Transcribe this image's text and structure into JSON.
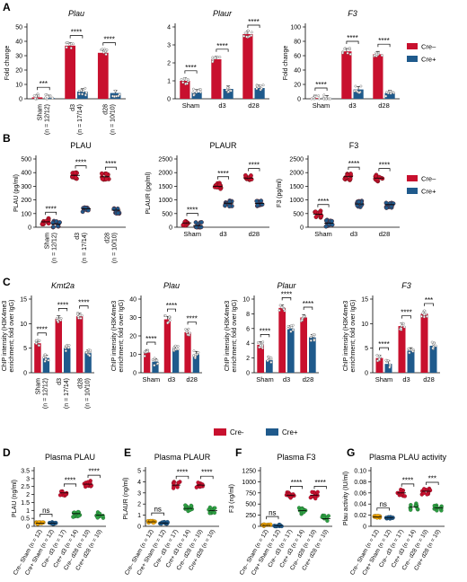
{
  "colors": {
    "cre_minus": "#c8102e",
    "cre_plus": "#1f5a8c",
    "green": "#2ea043",
    "orange": "#f0a500",
    "axis": "#000000"
  },
  "sig": {
    "s4": "****",
    "s3": "***",
    "ns": "ns"
  },
  "chart_data": [
    {
      "panel_letter": "A",
      "type": "bar",
      "title": "Plau",
      "ylabel": "Fold change",
      "ylim": [
        0,
        50
      ],
      "yticks": [
        0,
        10,
        20,
        30,
        40,
        50
      ],
      "categories": [
        "Sham\n(n = 12/12)",
        "d3\n(n = 17/14)",
        "d28\n(n = 10/10)"
      ],
      "series": [
        {
          "name": "Cre–",
          "values": [
            1,
            37,
            32
          ]
        },
        {
          "name": "Cre+",
          "values": [
            0.5,
            5,
            4
          ]
        }
      ],
      "significance": [
        "***",
        "****",
        "****"
      ]
    },
    {
      "panel_letter": "",
      "type": "bar",
      "title": "Plaur",
      "ylabel": "",
      "ylim": [
        0,
        4
      ],
      "yticks": [
        0,
        1,
        2,
        3,
        4
      ],
      "categories": [
        "Sham",
        "d3",
        "d28"
      ],
      "series": [
        {
          "name": "Cre–",
          "values": [
            1,
            2.2,
            3.6
          ]
        },
        {
          "name": "Cre+",
          "values": [
            0.35,
            0.55,
            0.6
          ]
        }
      ],
      "significance": [
        "****",
        "****",
        "****"
      ]
    },
    {
      "panel_letter": "",
      "type": "bar",
      "title": "F3",
      "ylabel": "Fold change",
      "ylim": [
        0,
        100
      ],
      "yticks": [
        0,
        20,
        40,
        60,
        80,
        100
      ],
      "categories": [
        "Sham",
        "d3",
        "d28"
      ],
      "series": [
        {
          "name": "Cre–",
          "values": [
            1,
            66,
            62
          ]
        },
        {
          "name": "Cre+",
          "values": [
            0.5,
            13,
            8
          ]
        }
      ],
      "significance": [
        "****",
        "****",
        "****"
      ],
      "legend": [
        "Cre–",
        "Cre+"
      ]
    },
    {
      "panel_letter": "B",
      "type": "scatter",
      "title": "PLAU",
      "ylabel": "PLAU (pg/ml)",
      "ylim": [
        0,
        500
      ],
      "yticks": [
        0,
        100,
        200,
        300,
        400,
        500
      ],
      "categories": [
        "Sham\n(n = 12/12)",
        "d3\n(n = 17/14)",
        "d28\n(n = 10/10)"
      ],
      "series": [
        {
          "name": "Cre–",
          "values": [
            40,
            380,
            370
          ]
        },
        {
          "name": "Cre+",
          "values": [
            22,
            135,
            125
          ]
        }
      ],
      "significance": [
        "****",
        "****",
        "****"
      ]
    },
    {
      "panel_letter": "",
      "type": "scatter",
      "title": "PLAUR",
      "ylabel": "PLAUR (pg/ml)",
      "ylim": [
        0,
        2500
      ],
      "yticks": [
        0,
        500,
        1000,
        1500,
        2000,
        2500
      ],
      "categories": [
        "Sham",
        "d3",
        "d28"
      ],
      "series": [
        {
          "name": "Cre–",
          "values": [
            160,
            1500,
            1800
          ]
        },
        {
          "name": "Cre+",
          "values": [
            60,
            880,
            870
          ]
        }
      ],
      "significance": [
        "****",
        "****",
        "****"
      ]
    },
    {
      "panel_letter": "",
      "type": "scatter",
      "title": "F3",
      "ylabel": "F3 (pg/ml)",
      "ylim": [
        0,
        2500
      ],
      "yticks": [
        0,
        500,
        1000,
        1500,
        2000,
        2500
      ],
      "categories": [
        "Sham",
        "d3",
        "d28"
      ],
      "series": [
        {
          "name": "Cre–",
          "values": [
            480,
            1850,
            1800
          ]
        },
        {
          "name": "Cre+",
          "values": [
            150,
            850,
            830
          ]
        }
      ],
      "significance": [
        "****",
        "****",
        "****"
      ],
      "legend": [
        "Cre–",
        "Cre+"
      ]
    },
    {
      "panel_letter": "C",
      "type": "bar",
      "title": "Kmt2a",
      "ylabel": "ChIP intensity (H3K4me3 enrichment; fold over IgG)",
      "ylim": [
        0,
        15
      ],
      "yticks": [
        0,
        5,
        10,
        15
      ],
      "categories": [
        "Sham\n(n = 12/12)",
        "d3\n(n = 17/14)",
        "d28\n(n = 10/10)"
      ],
      "series": [
        {
          "name": "Cre-",
          "values": [
            6,
            11,
            11.5
          ]
        },
        {
          "name": "Cre+",
          "values": [
            3,
            5,
            4
          ]
        }
      ],
      "significance": [
        "****",
        "****",
        "****"
      ]
    },
    {
      "panel_letter": "",
      "type": "bar",
      "title": "Plau",
      "ylabel": "ChIP intensity (H3K4me3 enrichment; fold over IgG)",
      "ylim": [
        0,
        40
      ],
      "yticks": [
        0,
        10,
        20,
        30,
        40
      ],
      "categories": [
        "Sham",
        "d3",
        "d28"
      ],
      "series": [
        {
          "name": "Cre-",
          "values": [
            11,
            29,
            22
          ]
        },
        {
          "name": "Cre+",
          "values": [
            6,
            13,
            10
          ]
        }
      ],
      "significance": [
        "****",
        "****",
        "****"
      ]
    },
    {
      "panel_letter": "",
      "type": "bar",
      "title": "Plaur",
      "ylabel": "ChIP intensity (H3K4me3 enrichment; fold over IgG)",
      "ylim": [
        0,
        10
      ],
      "yticks": [
        0,
        2,
        4,
        6,
        8,
        10
      ],
      "categories": [
        "Sham",
        "d3",
        "d28"
      ],
      "series": [
        {
          "name": "Cre-",
          "values": [
            3.8,
            8.8,
            7.5
          ]
        },
        {
          "name": "Cre+",
          "values": [
            1.7,
            6,
            4.8
          ]
        }
      ],
      "significance": [
        "****",
        "****",
        "****"
      ]
    },
    {
      "panel_letter": "",
      "type": "bar",
      "title": "F3",
      "ylabel": "ChIP intensity (H3K4me3 enrichment; fold over IgG)",
      "ylim": [
        0,
        15
      ],
      "yticks": [
        0,
        5,
        10,
        15
      ],
      "categories": [
        "Sham",
        "d3",
        "d28"
      ],
      "series": [
        {
          "name": "Cre-",
          "values": [
            3,
            9.5,
            12
          ]
        },
        {
          "name": "Cre+",
          "values": [
            1.8,
            4.5,
            5.5
          ]
        }
      ],
      "significance": [
        "****",
        "****",
        "***"
      ]
    },
    {
      "panel_letter": "D",
      "type": "scatter",
      "title": "Plasma PLAU",
      "ylabel": "PLAU (ng/ml)",
      "ylim": [
        0,
        3.5
      ],
      "yticks": [
        0,
        0.5,
        1,
        1.5,
        2,
        2.5,
        3,
        3.5
      ],
      "categories": [
        "Cre– Sham (n = 12)",
        "Cre+ Sham (n = 12)",
        "Cre– d3 (n = 17)",
        "Cre+ d3 (n = 14)",
        "Cre– d28 (n = 10)",
        "Cre+ d28 (n = 10)"
      ],
      "values": [
        0.2,
        0.2,
        2.1,
        0.8,
        2.65,
        0.7
      ],
      "colors": [
        "orange",
        "cre_plus",
        "cre_minus",
        "green",
        "cre_minus",
        "green"
      ],
      "significance": [
        {
          "from": 0,
          "to": 1,
          "label": "ns"
        },
        {
          "from": 2,
          "to": 3,
          "label": "****"
        },
        {
          "from": 4,
          "to": 5,
          "label": "****"
        }
      ]
    },
    {
      "panel_letter": "E",
      "type": "scatter",
      "title": "Plasma PLAUR",
      "ylabel": "PLAUR (ng/ml)",
      "ylim": [
        0,
        5
      ],
      "yticks": [
        0,
        1,
        2,
        3,
        4,
        5
      ],
      "categories": [
        "Cre– Sham (n = 12)",
        "Cre+ Sham (n = 12)",
        "Cre– d3 (n = 17)",
        "Cre+ d3 (n = 14)",
        "Cre– d28 (n = 10)",
        "Cre+ d28 (n = 10)"
      ],
      "values": [
        0.4,
        0.3,
        3.7,
        1.6,
        3.7,
        1.4
      ],
      "colors": [
        "orange",
        "cre_plus",
        "cre_minus",
        "green",
        "cre_minus",
        "green"
      ],
      "significance": [
        {
          "from": 0,
          "to": 1,
          "label": "ns"
        },
        {
          "from": 2,
          "to": 3,
          "label": "****"
        },
        {
          "from": 4,
          "to": 5,
          "label": "****"
        }
      ]
    },
    {
      "panel_letter": "F",
      "type": "scatter",
      "title": "Plasma F3",
      "ylabel": "F3 (ng/ml)",
      "ylim": [
        0,
        1250
      ],
      "yticks": [
        0,
        250,
        500,
        750,
        1000,
        1250
      ],
      "categories": [
        "Cre– Sham (n = 12)",
        "Cre+ Sham (n = 12)",
        "Cre– d3 (n = 17)",
        "Cre+ d3 (n = 14)",
        "Cre– d28 (n = 10)",
        "Cre+ d28 (n = 10)"
      ],
      "values": [
        20,
        15,
        700,
        350,
        700,
        170
      ],
      "colors": [
        "orange",
        "cre_plus",
        "cre_minus",
        "green",
        "cre_minus",
        "green"
      ],
      "significance": [
        {
          "from": 0,
          "to": 1,
          "label": "ns"
        },
        {
          "from": 2,
          "to": 3,
          "label": "****"
        },
        {
          "from": 4,
          "to": 5,
          "label": "****"
        }
      ]
    },
    {
      "panel_letter": "G",
      "type": "scatter",
      "title": "Plasma PLAU activity",
      "ylabel": "Plau activity (IU/ml)",
      "ylim": [
        0,
        0.1
      ],
      "yticks": [
        0,
        0.02,
        0.04,
        0.06,
        0.08,
        0.1
      ],
      "categories": [
        "Cre– Sham (n = 12)",
        "Cre+ Sham (n = 12)",
        "Cre– d3 (n = 17)",
        "Cre+ d3 (n = 14)",
        "Cre– d28 (n = 10)",
        "Cre+ d28 (n = 10)"
      ],
      "values": [
        0.017,
        0.015,
        0.06,
        0.035,
        0.063,
        0.033
      ],
      "colors": [
        "orange",
        "cre_plus",
        "cre_minus",
        "green",
        "cre_minus",
        "green"
      ],
      "significance": [
        {
          "from": 0,
          "to": 1,
          "label": "ns"
        },
        {
          "from": 2,
          "to": 3,
          "label": "****"
        },
        {
          "from": 4,
          "to": 5,
          "label": "***"
        }
      ]
    }
  ],
  "row_c_legend": [
    "Cre-",
    "Cre+"
  ]
}
